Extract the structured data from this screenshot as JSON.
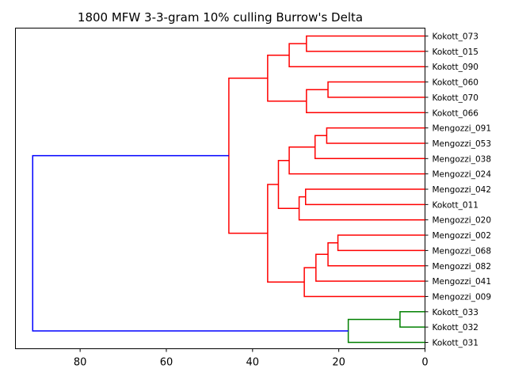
{
  "chart_data": {
    "type": "dendrogram",
    "title": "1800 MFW 3-3-gram 10% culling Burrow's Delta",
    "orientation": "left",
    "xlim": [
      95,
      0
    ],
    "xticks": [
      80,
      60,
      40,
      20,
      0
    ],
    "colors": {
      "cluster_a": "#ff0000",
      "cluster_b": "#008000",
      "root": "#0000ff"
    },
    "leaves": [
      "Kokott_073",
      "Kokott_015",
      "Kokott_090",
      "Kokott_060",
      "Kokott_070",
      "Kokott_066",
      "Mengozzi_091",
      "Mengozzi_053",
      "Mengozzi_038",
      "Mengozzi_024",
      "Mengozzi_042",
      "Kokott_011",
      "Mengozzi_020",
      "Mengozzi_002",
      "Mengozzi_068",
      "Mengozzi_082",
      "Mengozzi_041",
      "Mengozzi_009",
      "Kokott_033",
      "Kokott_032",
      "Kokott_031"
    ],
    "merges": [
      {
        "id": "A",
        "children": [
          "Kokott_073",
          "Kokott_015"
        ],
        "height": 27.5,
        "color": "cluster_a"
      },
      {
        "id": "B",
        "children": [
          "A",
          "Kokott_090"
        ],
        "height": 31.5,
        "color": "cluster_a"
      },
      {
        "id": "C",
        "children": [
          "Kokott_060",
          "Kokott_070"
        ],
        "height": 22.5,
        "color": "cluster_a"
      },
      {
        "id": "D",
        "children": [
          "C",
          "Kokott_066"
        ],
        "height": 27.5,
        "color": "cluster_a"
      },
      {
        "id": "E",
        "children": [
          "B",
          "D"
        ],
        "height": 36.5,
        "color": "cluster_a"
      },
      {
        "id": "F",
        "children": [
          "Mengozzi_091",
          "Mengozzi_053"
        ],
        "height": 22.8,
        "color": "cluster_a"
      },
      {
        "id": "G",
        "children": [
          "F",
          "Mengozzi_038"
        ],
        "height": 25.5,
        "color": "cluster_a"
      },
      {
        "id": "H",
        "children": [
          "G",
          "Mengozzi_024"
        ],
        "height": 31.5,
        "color": "cluster_a"
      },
      {
        "id": "I",
        "children": [
          "Mengozzi_042",
          "Kokott_011"
        ],
        "height": 27.7,
        "color": "cluster_a"
      },
      {
        "id": "J",
        "children": [
          "I",
          "Mengozzi_020"
        ],
        "height": 29.2,
        "color": "cluster_a"
      },
      {
        "id": "K",
        "children": [
          "H",
          "J"
        ],
        "height": 34.0,
        "color": "cluster_a"
      },
      {
        "id": "L",
        "children": [
          "Mengozzi_002",
          "Mengozzi_068"
        ],
        "height": 20.2,
        "color": "cluster_a"
      },
      {
        "id": "M",
        "children": [
          "L",
          "Mengozzi_082"
        ],
        "height": 22.5,
        "color": "cluster_a"
      },
      {
        "id": "N",
        "children": [
          "M",
          "Mengozzi_041"
        ],
        "height": 25.3,
        "color": "cluster_a"
      },
      {
        "id": "O",
        "children": [
          "N",
          "Mengozzi_009"
        ],
        "height": 28.0,
        "color": "cluster_a"
      },
      {
        "id": "P",
        "children": [
          "K",
          "O"
        ],
        "height": 36.5,
        "color": "cluster_a"
      },
      {
        "id": "Q",
        "children": [
          "E",
          "P"
        ],
        "height": 45.5,
        "color": "cluster_a"
      },
      {
        "id": "R",
        "children": [
          "Kokott_033",
          "Kokott_032"
        ],
        "height": 5.8,
        "color": "cluster_b"
      },
      {
        "id": "S",
        "children": [
          "R",
          "Kokott_031"
        ],
        "height": 17.8,
        "color": "cluster_b"
      },
      {
        "id": "T",
        "children": [
          "Q",
          "S"
        ],
        "height": 91.0,
        "color": "root"
      }
    ]
  }
}
